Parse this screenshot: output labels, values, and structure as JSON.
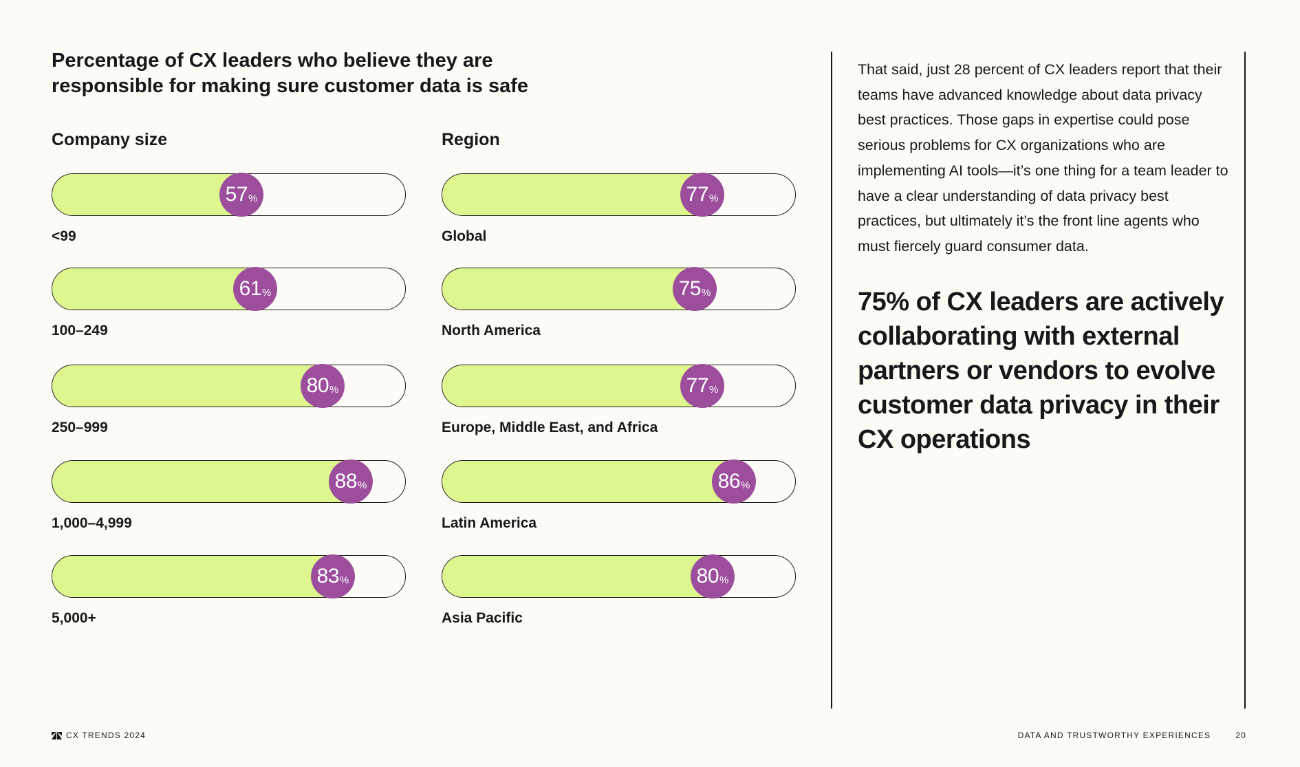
{
  "chart_data": {
    "type": "bar",
    "title": "Percentage of CX leaders who believe they are responsible for making sure customer data is safe",
    "unit": "%",
    "max": 100,
    "groups": [
      {
        "heading": "Company size",
        "categories": [
          "<99",
          "100–249",
          "250–999",
          "1,000–4,999",
          "5,000+"
        ],
        "values": [
          57,
          61,
          80,
          88,
          83
        ]
      },
      {
        "heading": "Region",
        "categories": [
          "Global",
          "North America",
          "Europe, Middle East, and Africa",
          "Latin America",
          "Asia Pacific"
        ],
        "values": [
          77,
          75,
          77,
          86,
          80
        ]
      }
    ]
  },
  "body_text": "That said, just 28 percent of CX leaders report that their teams have advanced knowledge about data privacy best practices. Those gaps in expertise could pose serious problems for CX organizations who are implementing AI tools—it’s one thing for a team leader to have a clear understanding of data privacy best practices, but ultimately it’s the front line agents who must fiercely guard consumer data.",
  "callout": "75% of CX leaders are actively collaborating with external partners or vendors to evolve customer data privacy in their CX operations",
  "footer": {
    "brand": "CX TRENDS 2024",
    "section": "DATA AND TRUSTWORTHY EXPERIENCES",
    "page": "20"
  },
  "colors": {
    "fill": "#ddf78e",
    "badge": "#9c4e9c",
    "background": "#fcfbf5",
    "ink": "#17181a"
  },
  "icons": {
    "brand_logo": "zendesk-logo-icon"
  }
}
